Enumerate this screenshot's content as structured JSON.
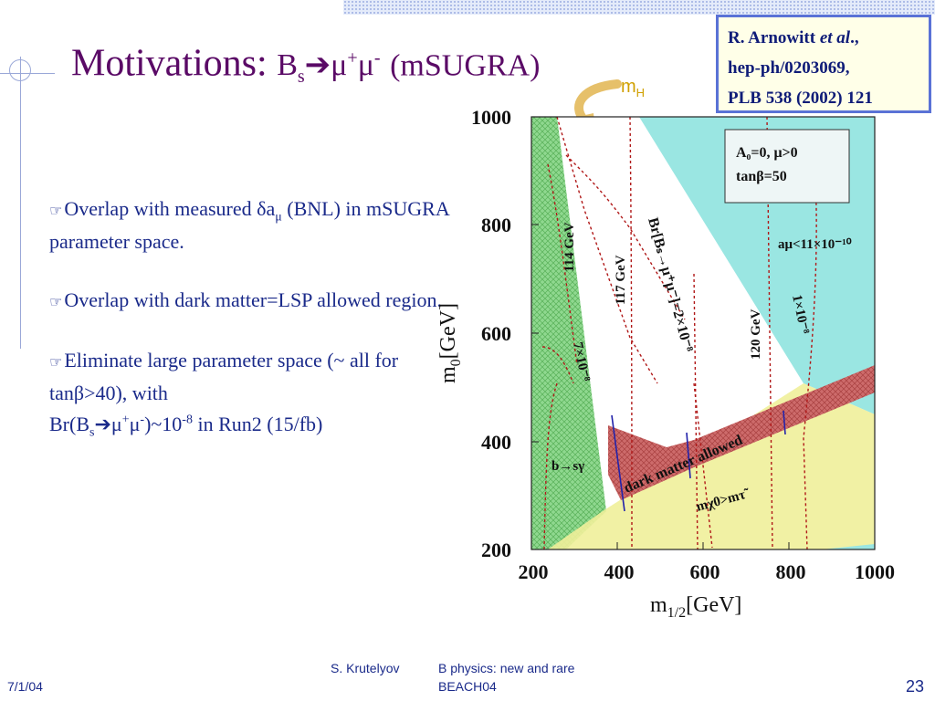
{
  "title": {
    "main": "Motivations:",
    "base": "B",
    "sub": "s",
    "arrow": "➔",
    "mu1": "μ",
    "plus": "+",
    "mu2": "μ",
    "minus": "-",
    "tail": "(mSUGRA)"
  },
  "reference": {
    "line1_pre": "R. Arnowitt",
    "line1_em": "et al",
    "line1_post": ".,",
    "line2": "hep-ph/0203069,",
    "line3": "PLB 538 (2002) 121"
  },
  "bullets": [
    {
      "text_pre": "Overlap with measured δa",
      "sub": "μ",
      "text_post": " (BNL) in mSUGRA parameter space."
    },
    {
      "text": "Overlap with dark matter=LSP allowed region."
    },
    {
      "line1": "Eliminate large parameter space (~ all for tanβ>40), with",
      "br_pre": "Br(B",
      "br_sub": "s",
      "br_arrow": "➔",
      "mu_a": "μ",
      "plus": "+",
      "mu_b": "μ",
      "minus": "-",
      "approx": ")~10",
      "exp": "-8",
      "br_post": " in Run2 (15/fb)"
    }
  ],
  "plot": {
    "mh_label": {
      "m": "m",
      "sub": "H"
    },
    "y_ticks": [
      "1000",
      "800",
      "600",
      "400",
      "200"
    ],
    "x_ticks": [
      "200",
      "400",
      "600",
      "800",
      "1000"
    ],
    "y_label": {
      "base": "m",
      "sub": "0",
      "unit": "[GeV]"
    },
    "x_label": {
      "base": "m",
      "sub": "1/2",
      "unit": "[GeV]"
    },
    "inset": {
      "line1": "A₀=0,  μ>0",
      "line2": "tanβ=50"
    },
    "labels": {
      "gev114": "114 GeV",
      "gev117": "117 GeV",
      "gev120": "120 GeV",
      "br_line": "Br[Bₛ→μ⁺μ⁻]=2×10⁻⁸",
      "seven": "7×10⁻⁸",
      "one": "1×10⁻⁸",
      "amu": "aμ<11×10⁻¹⁰",
      "bsg": "b→sγ",
      "dm": "dark matter allowed",
      "mchi": "mχ0>mτ̃"
    },
    "colors": {
      "green_region": "#8fd88f",
      "cyan_region": "#9ae6e2",
      "yellow_region": "#f0f09a",
      "dm_band": "#cd6b6b",
      "contours": "#b01818",
      "blue_marks": "#2222aa"
    }
  },
  "footer": {
    "date": "7/1/04",
    "author": "S. Krutelyov",
    "topic": "B physics: new and rare",
    "event": "BEACH04",
    "page": "23"
  }
}
